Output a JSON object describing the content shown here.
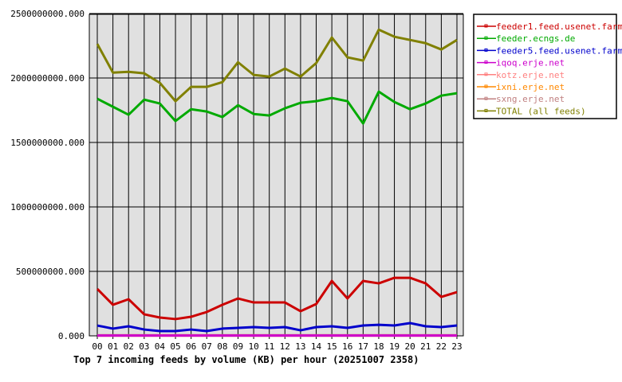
{
  "chart_data": {
    "type": "line",
    "title": "Top 7 incoming feeds by volume (KB) per hour (20251007 2358)",
    "xlabel": "",
    "ylabel": "",
    "categories": [
      "00",
      "01",
      "02",
      "03",
      "04",
      "05",
      "06",
      "07",
      "08",
      "09",
      "10",
      "11",
      "12",
      "13",
      "14",
      "15",
      "16",
      "17",
      "18",
      "19",
      "20",
      "21",
      "22",
      "23"
    ],
    "ylim": [
      0,
      2500000000
    ],
    "yticks": [
      "0.000",
      "500000000.000",
      "1000000000.000",
      "1500000000.000",
      "2000000000.000",
      "2500000000.000"
    ],
    "grid": true,
    "legend_position": "right",
    "series": [
      {
        "name": "feeder1.feed.usenet.farm",
        "color": "#cc0000",
        "values": [
          364,
          241,
          284,
          167,
          142,
          130,
          148,
          185,
          241,
          290,
          259,
          259,
          259,
          191,
          247,
          426,
          290,
          426,
          407,
          450,
          450,
          407,
          302,
          339
        ]
      },
      {
        "name": "feeder.ecngs.de",
        "color": "#00aa00",
        "values": [
          1839,
          1777,
          1715,
          1832,
          1802,
          1666,
          1758,
          1740,
          1697,
          1789,
          1721,
          1709,
          1765,
          1808,
          1820,
          1845,
          1820,
          1647,
          1894,
          1814,
          1758,
          1802,
          1863,
          1882
        ]
      },
      {
        "name": "feeder5.feed.usenet.farm",
        "color": "#0000cc",
        "values": [
          80,
          56,
          74,
          49,
          37,
          37,
          49,
          37,
          56,
          62,
          68,
          62,
          68,
          43,
          68,
          74,
          62,
          80,
          86,
          80,
          99,
          74,
          68,
          80
        ]
      },
      {
        "name": "iqoq.erje.net",
        "color": "#cc00cc",
        "values": [
          2,
          2,
          2,
          2,
          2,
          2,
          2,
          2,
          2,
          2,
          2,
          2,
          2,
          2,
          2,
          2,
          2,
          2,
          2,
          2,
          2,
          2,
          2,
          2
        ]
      },
      {
        "name": "kotz.erje.net",
        "color": "#ff8080",
        "values": [
          2,
          2,
          2,
          2,
          2,
          2,
          2,
          2,
          2,
          2,
          2,
          2,
          2,
          2,
          2,
          2,
          2,
          2,
          2,
          2,
          2,
          2,
          2,
          2
        ]
      },
      {
        "name": "ixni.erje.net",
        "color": "#ff8800",
        "values": [
          2,
          2,
          2,
          2,
          2,
          2,
          2,
          2,
          2,
          2,
          2,
          2,
          2,
          2,
          2,
          2,
          2,
          2,
          2,
          2,
          2,
          2,
          2,
          2
        ]
      },
      {
        "name": "sxng.erje.net",
        "color": "#c08080",
        "values": [
          5,
          5,
          5,
          5,
          5,
          5,
          5,
          5,
          5,
          5,
          5,
          5,
          5,
          5,
          5,
          5,
          5,
          5,
          5,
          5,
          5,
          5,
          5,
          5
        ]
      },
      {
        "name": "TOTAL (all feeds)",
        "color": "#808000",
        "values": [
          2264,
          2042,
          2048,
          2036,
          1962,
          1820,
          1931,
          1931,
          1968,
          2122,
          2024,
          2011,
          2073,
          2011,
          2116,
          2314,
          2160,
          2135,
          2375,
          2320,
          2295,
          2270,
          2221,
          2295
        ]
      }
    ],
    "value_unit_multiplier": 1000000
  }
}
